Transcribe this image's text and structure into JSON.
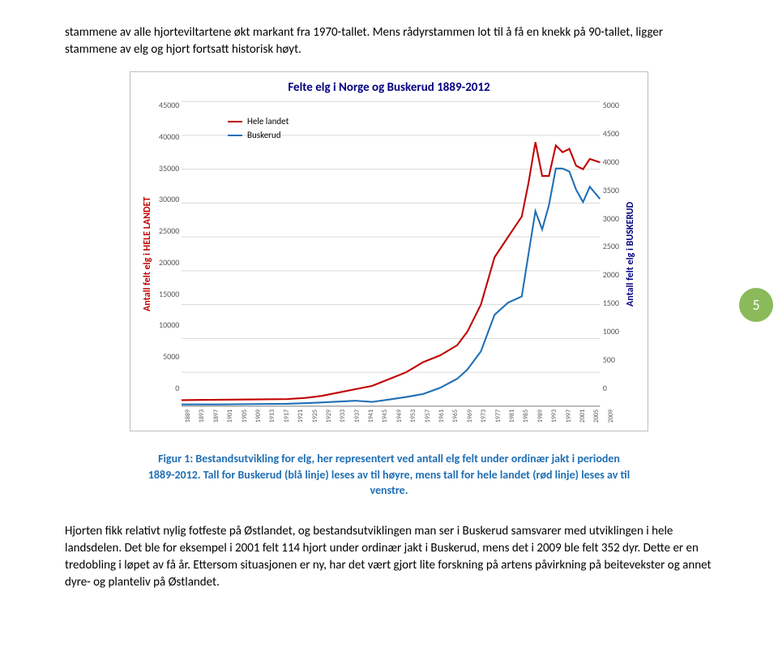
{
  "intro_para": "stammene av alle hjorteviltartene økt markant fra 1970-tallet. Mens rådyrstammen lot til å få en knekk på 90-tallet, ligger stammene av elg og hjort fortsatt historisk høyt.",
  "page_number": "5",
  "chart": {
    "title": "Felte elg i Norge og Buskerud 1889-2012",
    "y_left_label": "Antall felt elg i HELE LANDET",
    "y_right_label": "Antall felt elg i BUSKERUD",
    "y_left_ticks": [
      "45000",
      "40000",
      "35000",
      "30000",
      "25000",
      "20000",
      "15000",
      "10000",
      "5000",
      "0"
    ],
    "y_right_ticks": [
      "5000",
      "4500",
      "4000",
      "3500",
      "3000",
      "2500",
      "2000",
      "1500",
      "1000",
      "500",
      "0"
    ],
    "x_ticks": [
      "1889",
      "1893",
      "1897",
      "1901",
      "1905",
      "1909",
      "1913",
      "1917",
      "1921",
      "1925",
      "1929",
      "1933",
      "1937",
      "1941",
      "1945",
      "1949",
      "1953",
      "1957",
      "1961",
      "1965",
      "1969",
      "1973",
      "1977",
      "1981",
      "1985",
      "1989",
      "1993",
      "1997",
      "2001",
      "2005",
      "2009"
    ],
    "legend": {
      "s1_label": "Hele landet",
      "s1_color": "#c00000",
      "s2_label": "Buskerud",
      "s2_color": "#1f6fb5"
    },
    "background_color": "#ffffff",
    "grid_color": "#d9d9d9",
    "series_left": {
      "color": "#c00000",
      "ylim": [
        0,
        45000
      ],
      "xrange": [
        1889,
        2012
      ],
      "points": [
        [
          1889,
          900
        ],
        [
          1900,
          950
        ],
        [
          1910,
          1000
        ],
        [
          1920,
          1050
        ],
        [
          1925,
          1200
        ],
        [
          1930,
          1500
        ],
        [
          1935,
          2000
        ],
        [
          1940,
          2500
        ],
        [
          1945,
          3000
        ],
        [
          1950,
          4000
        ],
        [
          1955,
          5000
        ],
        [
          1960,
          6500
        ],
        [
          1965,
          7500
        ],
        [
          1970,
          9000
        ],
        [
          1973,
          11000
        ],
        [
          1977,
          15000
        ],
        [
          1981,
          22000
        ],
        [
          1985,
          25000
        ],
        [
          1989,
          28000
        ],
        [
          1991,
          33000
        ],
        [
          1993,
          39000
        ],
        [
          1995,
          34000
        ],
        [
          1997,
          34000
        ],
        [
          1999,
          38500
        ],
        [
          2001,
          37500
        ],
        [
          2003,
          38000
        ],
        [
          2005,
          35500
        ],
        [
          2007,
          35000
        ],
        [
          2009,
          36500
        ],
        [
          2012,
          36000
        ]
      ]
    },
    "series_right": {
      "color": "#1f6fb5",
      "ylim": [
        0,
        5000
      ],
      "xrange": [
        1889,
        2012
      ],
      "points": [
        [
          1889,
          30
        ],
        [
          1900,
          30
        ],
        [
          1910,
          35
        ],
        [
          1920,
          40
        ],
        [
          1930,
          60
        ],
        [
          1940,
          90
        ],
        [
          1945,
          70
        ],
        [
          1950,
          110
        ],
        [
          1955,
          150
        ],
        [
          1960,
          200
        ],
        [
          1965,
          300
        ],
        [
          1970,
          450
        ],
        [
          1973,
          600
        ],
        [
          1977,
          900
        ],
        [
          1981,
          1500
        ],
        [
          1985,
          1700
        ],
        [
          1989,
          1800
        ],
        [
          1991,
          2500
        ],
        [
          1993,
          3200
        ],
        [
          1995,
          2900
        ],
        [
          1997,
          3300
        ],
        [
          1999,
          3900
        ],
        [
          2001,
          3900
        ],
        [
          2003,
          3850
        ],
        [
          2005,
          3550
        ],
        [
          2007,
          3350
        ],
        [
          2009,
          3600
        ],
        [
          2012,
          3400
        ]
      ]
    }
  },
  "caption_line1": "Figur 1: Bestandsutvikling for elg, her representert ved antall elg felt under ordinær jakt i perioden 1889-2012. Tall for Buskerud (blå linje) leses av til høyre, mens tall for hele landet (rød linje) leses av til venstre.",
  "body_para": "Hjorten fikk relativt nylig fotfeste på Østlandet, og bestandsutviklingen man ser i Buskerud samsvarer med utviklingen i hele landsdelen. Det ble for eksempel i 2001 felt  114 hjort under ordinær jakt i Buskerud, mens det i 2009 ble felt 352 dyr. Dette er en tredobling i løpet av få år. Ettersom situasjonen er ny, har det vært gjort lite forskning på artens påvirkning på beitevekster og annet dyre- og planteliv på Østlandet."
}
